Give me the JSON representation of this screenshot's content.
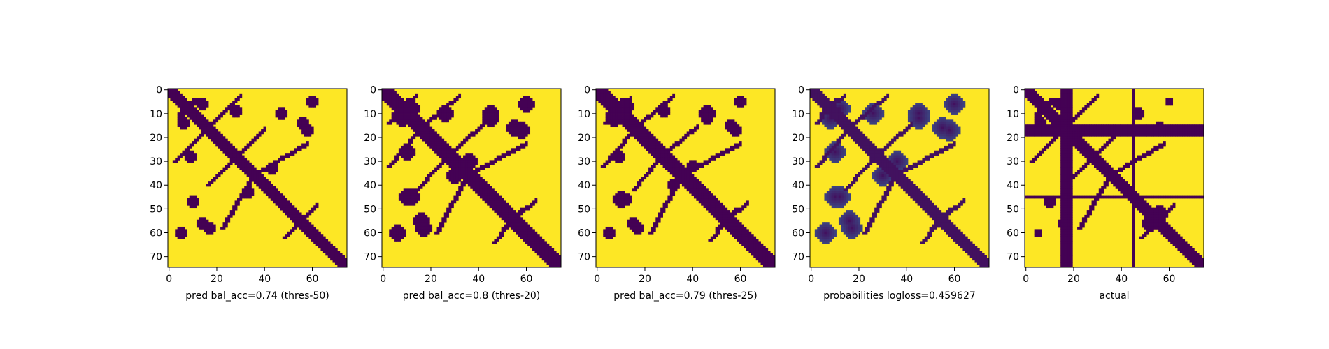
{
  "chart_data": [
    {
      "type": "heatmap",
      "xlabel": "pred bal_acc=0.74 (thres-50)",
      "grid_size": 75,
      "xticks": [
        0,
        20,
        40,
        60
      ],
      "yticks": [
        0,
        10,
        20,
        30,
        40,
        50,
        60,
        70
      ],
      "xlim": [
        0,
        75
      ],
      "ylim": [
        75,
        0
      ],
      "colors": {
        "low": "#440154",
        "high": "#fde725"
      },
      "contacts": {
        "diagonal_band": 3,
        "arms": [
          [
            4,
            10,
            12,
            4
          ],
          [
            18,
            14,
            30,
            2
          ],
          [
            28,
            28,
            40,
            16
          ],
          [
            34,
            36,
            58,
            22
          ],
          [
            52,
            58,
            62,
            48
          ]
        ],
        "blobs": [
          [
            6,
            14,
            2
          ],
          [
            10,
            47,
            2
          ],
          [
            14,
            56,
            2
          ],
          [
            28,
            9,
            2
          ],
          [
            33,
            43,
            2
          ],
          [
            58,
            17,
            2
          ],
          [
            60,
            5,
            2
          ]
        ]
      }
    },
    {
      "type": "heatmap",
      "xlabel": "pred bal_acc=0.8 (thres-20)",
      "grid_size": 75,
      "xticks": [
        0,
        20,
        40,
        60
      ],
      "yticks": [
        0,
        10,
        20,
        30,
        40,
        50,
        60,
        70
      ],
      "xlim": [
        0,
        75
      ],
      "ylim": [
        75,
        0
      ],
      "colors": {
        "low": "#440154",
        "high": "#fde725"
      },
      "contacts": {
        "diagonal_band": 4,
        "arms": [
          [
            4,
            10,
            14,
            2
          ],
          [
            18,
            14,
            32,
            2
          ],
          [
            26,
            28,
            42,
            14
          ],
          [
            34,
            36,
            60,
            22
          ],
          [
            50,
            58,
            64,
            46
          ]
        ],
        "blobs": [
          [
            8,
            12,
            3
          ],
          [
            10,
            45,
            3
          ],
          [
            16,
            55,
            3
          ],
          [
            26,
            10,
            3
          ],
          [
            30,
            36,
            3
          ],
          [
            45,
            12,
            3
          ],
          [
            58,
            17,
            3
          ],
          [
            60,
            6,
            3
          ]
        ]
      }
    },
    {
      "type": "heatmap",
      "xlabel": "pred bal_acc=0.79 (thres-25)",
      "grid_size": 75,
      "xticks": [
        0,
        20,
        40,
        60
      ],
      "yticks": [
        0,
        10,
        20,
        30,
        40,
        50,
        60,
        70
      ],
      "xlim": [
        0,
        75
      ],
      "ylim": [
        75,
        0
      ],
      "colors": {
        "low": "#440154",
        "high": "#fde725"
      },
      "contacts": {
        "diagonal_band": 4,
        "arms": [
          [
            4,
            10,
            14,
            3
          ],
          [
            18,
            14,
            32,
            2
          ],
          [
            26,
            28,
            42,
            15
          ],
          [
            34,
            36,
            60,
            22
          ],
          [
            50,
            58,
            63,
            47
          ]
        ],
        "blobs": [
          [
            7,
            13,
            2
          ],
          [
            10,
            46,
            3
          ],
          [
            15,
            56,
            2
          ],
          [
            28,
            9,
            2
          ],
          [
            32,
            40,
            2
          ],
          [
            46,
            12,
            2
          ],
          [
            58,
            17,
            2
          ],
          [
            60,
            5,
            2
          ]
        ]
      }
    },
    {
      "type": "heatmap",
      "xlabel": "probabilities logloss=0.459627",
      "grid_size": 75,
      "xticks": [
        0,
        20,
        40,
        60
      ],
      "yticks": [
        0,
        10,
        20,
        30,
        40,
        50,
        60,
        70
      ],
      "xlim": [
        0,
        75
      ],
      "ylim": [
        75,
        0
      ],
      "colors": {
        "low": "#440154",
        "mid": "#21918c",
        "high": "#fde725"
      },
      "contacts": {
        "diagonal_band": 3,
        "arms": [
          [
            4,
            10,
            14,
            2
          ],
          [
            18,
            14,
            32,
            2
          ],
          [
            26,
            28,
            42,
            14
          ],
          [
            34,
            36,
            60,
            22
          ],
          [
            50,
            58,
            64,
            46
          ]
        ],
        "blobs": [
          [
            8,
            12,
            4
          ],
          [
            10,
            45,
            4
          ],
          [
            16,
            55,
            4
          ],
          [
            26,
            10,
            4
          ],
          [
            30,
            36,
            4
          ],
          [
            45,
            12,
            4
          ],
          [
            58,
            17,
            4
          ],
          [
            60,
            6,
            4
          ]
        ]
      }
    },
    {
      "type": "heatmap",
      "xlabel": "actual",
      "grid_size": 75,
      "xticks": [
        0,
        20,
        40,
        60
      ],
      "yticks": [
        0,
        10,
        20,
        30,
        40,
        50,
        60,
        70
      ],
      "xlim": [
        0,
        75
      ],
      "ylim": [
        75,
        0
      ],
      "colors": {
        "low": "#440154",
        "high": "#fde725"
      },
      "contacts": {
        "diagonal_band": 3,
        "full_rows": [
          16,
          17,
          18,
          19,
          45
        ],
        "full_cols": [
          15,
          16,
          17,
          18,
          45
        ],
        "arms": [
          [
            4,
            10,
            12,
            4
          ],
          [
            18,
            14,
            30,
            2
          ],
          [
            28,
            28,
            40,
            16
          ],
          [
            34,
            36,
            58,
            22
          ],
          [
            52,
            58,
            62,
            48
          ]
        ],
        "blobs": [
          [
            6,
            14,
            2
          ],
          [
            10,
            47,
            2
          ],
          [
            16,
            56,
            2
          ],
          [
            58,
            17,
            2
          ],
          [
            60,
            5,
            1
          ],
          [
            56,
            52,
            3
          ]
        ]
      }
    }
  ]
}
